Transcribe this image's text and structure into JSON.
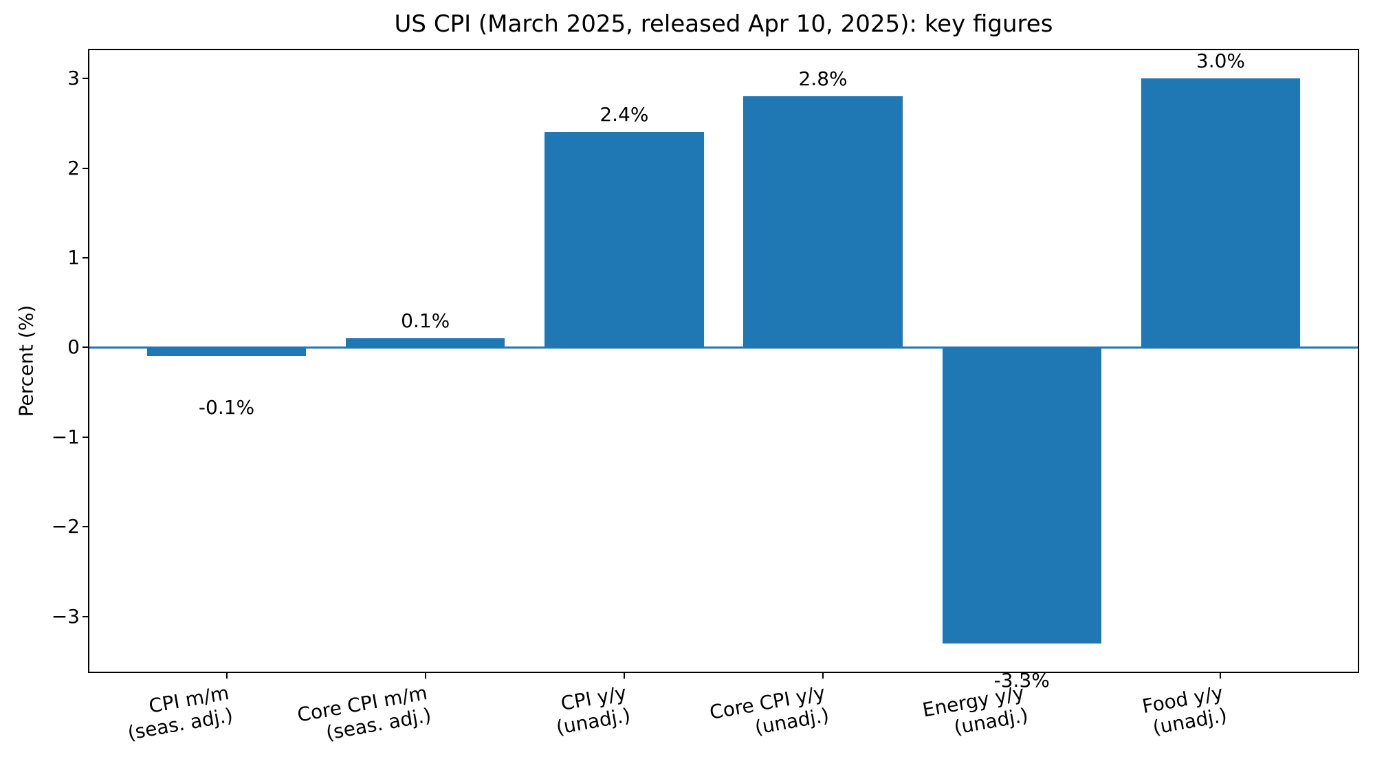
{
  "chart_data": {
    "type": "bar",
    "title": "US CPI (March 2025, released Apr 10, 2025): key figures",
    "xlabel": "",
    "ylabel": "Percent (%)",
    "categories": [
      {
        "line1": "CPI m/m",
        "line2": "(seas. adj.)"
      },
      {
        "line1": "Core CPI m/m",
        "line2": "(seas. adj.)"
      },
      {
        "line1": "CPI y/y",
        "line2": "(unadj.)"
      },
      {
        "line1": "Core CPI y/y",
        "line2": "(unadj.)"
      },
      {
        "line1": "Energy y/y",
        "line2": "(unadj.)"
      },
      {
        "line1": "Food y/y",
        "line2": "(unadj.)"
      }
    ],
    "values": [
      -0.1,
      0.1,
      2.4,
      2.8,
      -3.3,
      3.0
    ],
    "bar_labels": [
      "-0.1%",
      "0.1%",
      "2.4%",
      "2.8%",
      "-3.3%",
      "3.0%"
    ],
    "yticks": [
      {
        "value": 3,
        "label": "3"
      },
      {
        "value": 2,
        "label": "2"
      },
      {
        "value": 1,
        "label": "1"
      },
      {
        "value": 0,
        "label": "0"
      },
      {
        "value": -1,
        "label": "−1"
      },
      {
        "value": -2,
        "label": "−2"
      },
      {
        "value": -3,
        "label": "−3"
      }
    ],
    "ylim": [
      -3.615,
      3.315
    ],
    "xlim": [
      -0.69,
      5.69
    ],
    "bar_width_data_units": 0.8,
    "bar_color": "#1f77b4",
    "zero_line_color": "#1f77b4",
    "xtick_rotation_deg": 10,
    "grid": false,
    "legend": false
  }
}
